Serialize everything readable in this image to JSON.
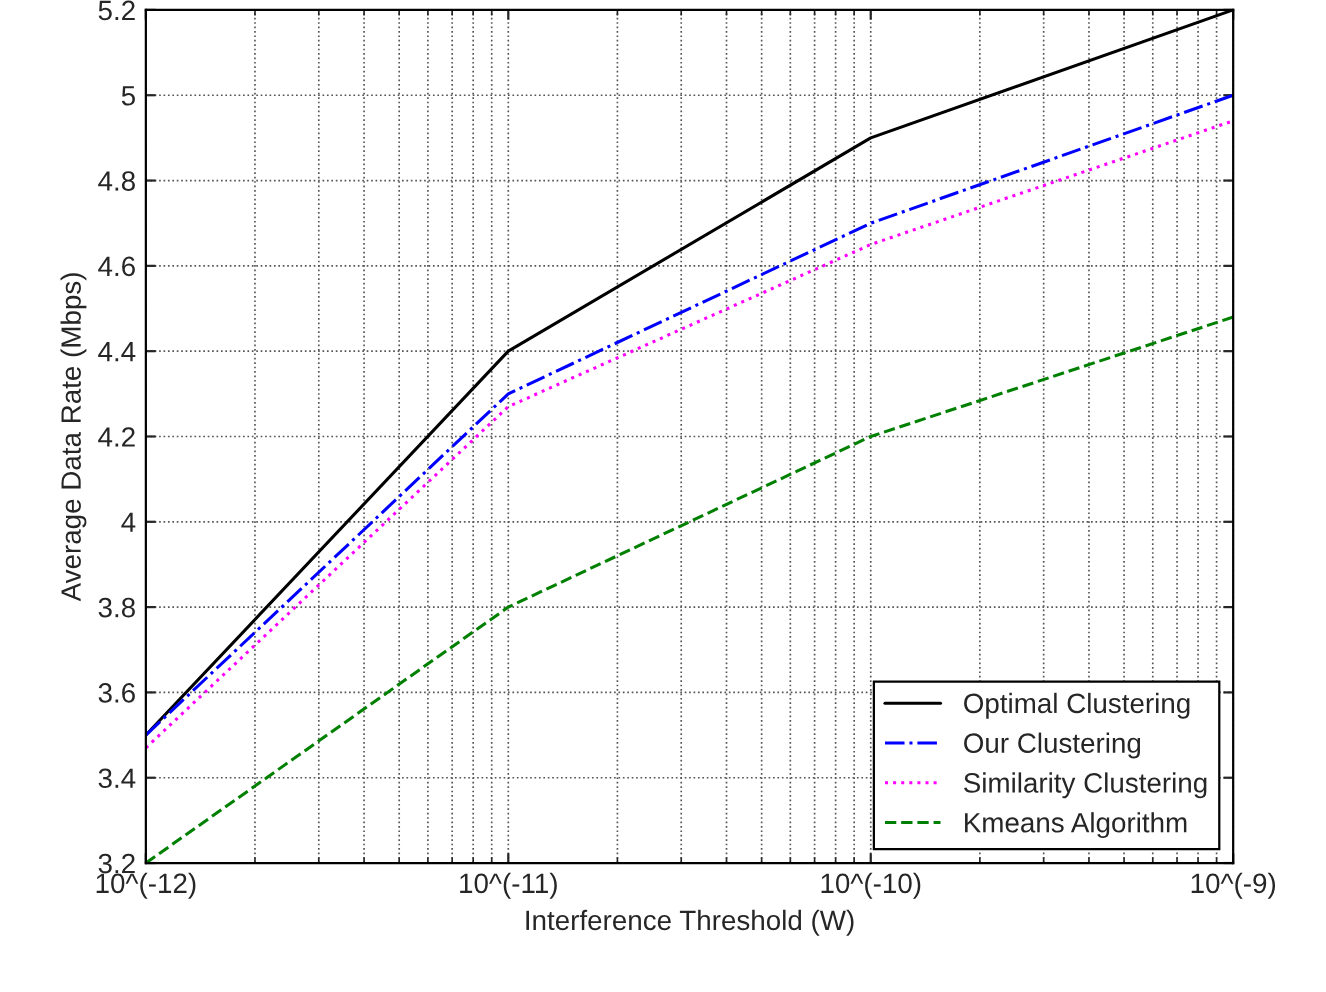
{
  "chart_data": {
    "type": "line",
    "xlabel": "Interference Threshold (W)",
    "ylabel": "Average Data Rate (Mbps)",
    "categories": [
      "10^(-12)",
      "10^(-11)",
      "10^(-10)",
      "10^(-9)"
    ],
    "series": [
      {
        "name": "Optimal Clustering",
        "color": "#000000",
        "line_style": "solid",
        "values": [
          3.5,
          4.4,
          4.9,
          5.2
        ]
      },
      {
        "name": "Our Clustering",
        "color": "#0000ff",
        "line_style": "dashdot",
        "values": [
          3.5,
          4.3,
          4.7,
          5.0
        ]
      },
      {
        "name": "Similarity Clustering",
        "color": "#ff00ff",
        "line_style": "dotted",
        "values": [
          3.47,
          4.27,
          4.65,
          4.94
        ]
      },
      {
        "name": "Kmeans Algorithm",
        "color": "#008000",
        "line_style": "dashed",
        "values": [
          3.2,
          3.8,
          4.2,
          4.48
        ]
      }
    ],
    "ylim": [
      3.2,
      5.2
    ],
    "yticks": [
      3.2,
      3.4,
      3.6,
      3.8,
      4,
      4.2,
      4.4,
      4.6,
      4.8,
      5,
      5.2
    ],
    "grid": true,
    "legend": "bottom right",
    "marker": "none"
  }
}
